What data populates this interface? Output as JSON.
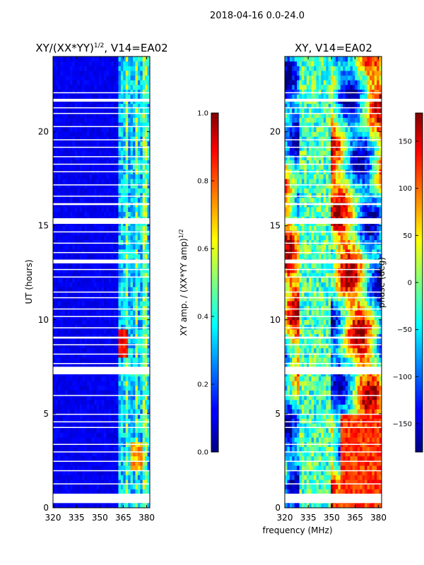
{
  "suptitle": "2018-04-16 0.0-24.0",
  "chart_data": [
    {
      "type": "heatmap",
      "title": "XY/(XX*YY)",
      "title_exponent": "1/2",
      "title_suffix": ", V14=EA02",
      "ylabel": "UT (hours)",
      "xlabel": "",
      "xlim": [
        320,
        382
      ],
      "ylim": [
        0,
        24
      ],
      "xticks": [
        320,
        335,
        350,
        365,
        380
      ],
      "yticks": [
        0,
        5,
        10,
        15,
        20
      ],
      "colormap": "jet",
      "colorbar": {
        "label": "XY amp. / (XX*YY amp)",
        "label_exponent": "1/2",
        "range": [
          0.0,
          1.0
        ],
        "ticks": [
          "0.0",
          "0.2",
          "0.4",
          "0.6",
          "0.8",
          "1.0"
        ]
      }
    },
    {
      "type": "heatmap",
      "title": "XY, V14=EA02",
      "ylabel": "",
      "xlabel": "frequency (MHz)",
      "xlim": [
        320,
        382
      ],
      "ylim": [
        0,
        24
      ],
      "xticks": [
        320,
        335,
        350,
        365,
        380
      ],
      "yticks": [
        0,
        5,
        10,
        15,
        20
      ],
      "colormap": "jet",
      "colorbar": {
        "label": "phase (deg)",
        "range": [
          -180,
          180
        ],
        "ticks": [
          "150",
          "100",
          "50",
          "0",
          "−50",
          "−100",
          "−150"
        ]
      }
    }
  ]
}
